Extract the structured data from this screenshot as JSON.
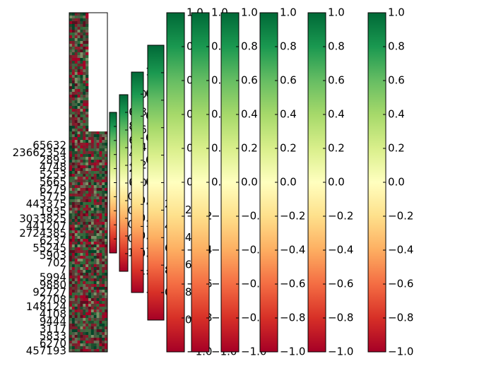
{
  "chart_data": [
    {
      "type": "heatmap",
      "colormap": "RdYlGn",
      "title": "",
      "xlabel": "",
      "ylabel": "",
      "row_labels": [
        "65632",
        "23662354",
        "2893",
        "4748",
        "5253",
        "5665",
        "6279",
        "5775",
        "443375",
        "1935",
        "3033825",
        "441207",
        "2724385",
        "6237",
        "55245",
        "5903",
        "702",
        "7",
        "5994",
        "9880",
        "92727",
        "2708",
        "148124",
        "4108",
        "9444",
        "3117",
        "5833",
        "6270",
        "457193"
      ],
      "note_rows_upper_region": "unlabeled"
    },
    {
      "type": "colorbar",
      "colormap": "RdYlGn",
      "colorbars": [
        {
          "ticks": [
            "1.0",
            "0.8",
            "0.6",
            "0.4",
            "0.2",
            "0.0",
            "−0.2",
            "−0.4",
            "−0.6",
            "−0.8",
            "−1.0"
          ]
        },
        {
          "ticks": [
            "1.0",
            "0.8",
            "0.6",
            "0.4",
            "0.2",
            "0.0",
            "−0.2",
            "−0.4",
            "−0.6",
            "−0.8",
            "−1.0"
          ]
        },
        {
          "ticks": [
            "1.0",
            "0.8",
            "0.6",
            "0.4",
            "0.2",
            "0.0",
            "−0.2",
            "−0.4",
            "−0.6",
            "−0.8",
            "−1.0"
          ]
        },
        {
          "ticks": [
            "1.0",
            "0.8",
            "0.6",
            "0.4",
            "0.2",
            "0.0",
            "−0.2",
            "−0.4",
            "−0.6",
            "−0.8",
            "−1.0"
          ]
        },
        {
          "ticks": [
            "1.0",
            "0.8",
            "0.6",
            "0.4",
            "0.2",
            "0.0",
            "−0.2",
            "−0.4",
            "−0.6",
            "−0.8",
            "−1.0"
          ]
        },
        {
          "ticks": [
            "1.0",
            "0.8",
            "0.6",
            "0.4",
            "0.2",
            "0.0",
            "−0.2",
            "−0.4",
            "−0.6",
            "−0.8",
            "−1.0"
          ]
        },
        {
          "ticks": [
            "1.0",
            "0.8",
            "0.6",
            "0.4",
            "0.2",
            "0.0",
            "−0.2",
            "−0.4",
            "−0.6",
            "−0.8",
            "−1.0"
          ]
        },
        {
          "ticks": [
            "1.0",
            "0.8",
            "0.6",
            "0.4",
            "0.2",
            "0.0",
            "−0.2",
            "−0.4",
            "−0.6",
            "−0.8",
            "−1.0"
          ]
        },
        {
          "ticks": [
            "1.0",
            "0.8",
            "0.6",
            "0.4",
            "0.2",
            "0.0",
            "−0.2",
            "−0.4",
            "−0.6",
            "−0.8",
            "−1.0"
          ]
        },
        {
          "ticks": [
            "1.0",
            "0.8",
            "0.6",
            "0.4",
            "0.2",
            "0.0",
            "−0.2",
            "−0.4",
            "−0.6",
            "−0.8",
            "−1.0"
          ]
        }
      ],
      "vmin": -1.0,
      "vmax": 1.0
    }
  ]
}
